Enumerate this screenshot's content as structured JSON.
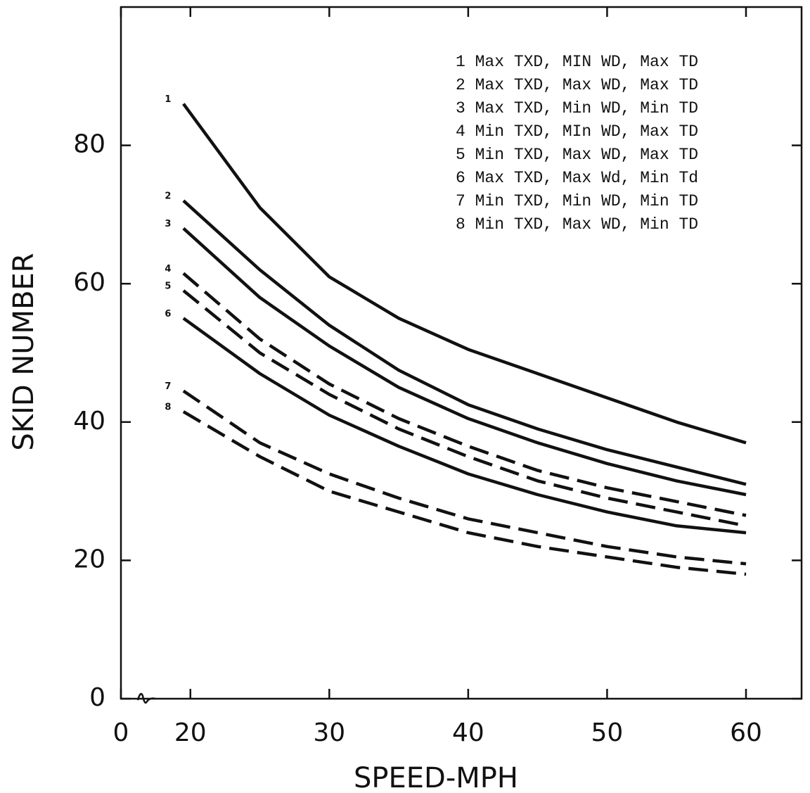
{
  "chart_data": {
    "type": "line",
    "xlabel": "SPEED-MPH",
    "ylabel": "SKID NUMBER",
    "x": [
      19.5,
      25,
      30,
      35,
      40,
      45,
      50,
      55,
      60
    ],
    "xlim": [
      0,
      64
    ],
    "xbreak": [
      0,
      15
    ],
    "xticks": [
      0,
      20,
      30,
      40,
      50,
      60
    ],
    "ylim": [
      0,
      100
    ],
    "yticks": [
      0,
      20,
      40,
      60,
      80
    ],
    "legend": "upper right",
    "curve_labels": [
      "1",
      "2",
      "3",
      "4",
      "5",
      "6",
      "7",
      "8"
    ],
    "series": [
      {
        "name": "1 Max TXD, MIN WD, Max TD",
        "color": "#111111",
        "dashed": false,
        "values": [
          86,
          71,
          61,
          55,
          50.5,
          47,
          43.5,
          40,
          37
        ]
      },
      {
        "name": "2 Max TXD, Max WD, Max TD",
        "color": "#111111",
        "dashed": false,
        "values": [
          72,
          62,
          54,
          47.5,
          42.5,
          39,
          36,
          33.5,
          31
        ]
      },
      {
        "name": "3 Max TXD, Min WD, Min TD",
        "color": "#111111",
        "dashed": false,
        "values": [
          68,
          58,
          51,
          45,
          40.5,
          37,
          34,
          31.5,
          29.5
        ]
      },
      {
        "name": "4 Min TXD, MIn WD, Max TD",
        "color": "#111111",
        "dashed": true,
        "values": [
          61.5,
          52,
          45.5,
          40.5,
          36.5,
          33,
          30.5,
          28.5,
          26.5
        ]
      },
      {
        "name": "5 Min TXD, Max WD, Max TD",
        "color": "#111111",
        "dashed": true,
        "values": [
          59,
          50,
          44,
          39,
          35,
          31.5,
          29,
          27,
          25
        ]
      },
      {
        "name": "6 Max TXD, Max Wd, Min Td",
        "color": "#111111",
        "dashed": false,
        "values": [
          55,
          47,
          41,
          36.5,
          32.5,
          29.5,
          27,
          25,
          24
        ]
      },
      {
        "name": "7 Min TXD, Min WD, Min TD",
        "color": "#111111",
        "dashed": true,
        "values": [
          44.5,
          37,
          32.5,
          29,
          26,
          24,
          22,
          20.5,
          19.5
        ]
      },
      {
        "name": "8 Min TXD, Max WD, Min TD",
        "color": "#111111",
        "dashed": true,
        "values": [
          41.5,
          35,
          30,
          27,
          24,
          22,
          20.5,
          19,
          18
        ]
      }
    ]
  }
}
